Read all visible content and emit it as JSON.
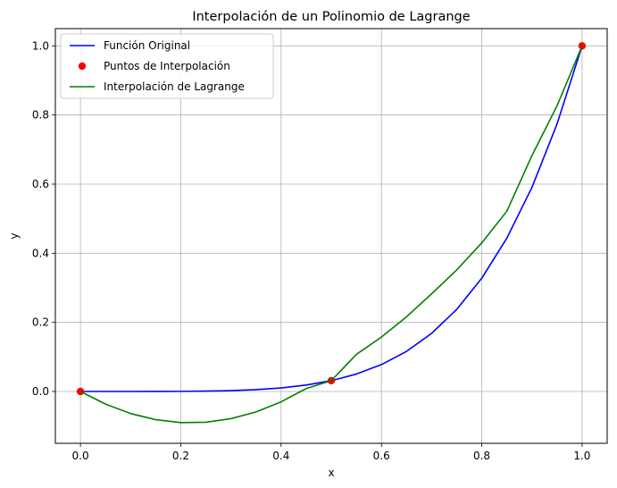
{
  "chart_data": {
    "type": "line",
    "title": "Interpolación de un Polinomio de Lagrange",
    "xlabel": "x",
    "ylabel": "y",
    "xlim": [
      -0.05,
      1.05
    ],
    "ylim": [
      -0.15,
      1.05
    ],
    "xticks": [
      0.0,
      0.2,
      0.4,
      0.6,
      0.8,
      1.0
    ],
    "yticks": [
      0.0,
      0.2,
      0.4,
      0.6,
      0.8,
      1.0
    ],
    "xtick_labels": [
      "0.0",
      "0.2",
      "0.4",
      "0.6",
      "0.8",
      "1.0"
    ],
    "ytick_labels": [
      "0.0",
      "0.2",
      "0.4",
      "0.6",
      "0.8",
      "1.0"
    ],
    "grid": true,
    "legend_placement": "upper-left",
    "series": [
      {
        "name": "Función Original",
        "kind": "line",
        "color": "#0000ff",
        "x": [
          0,
          0.05,
          0.1,
          0.15,
          0.2,
          0.25,
          0.3,
          0.35,
          0.4,
          0.45,
          0.5,
          0.55,
          0.6,
          0.65,
          0.7,
          0.75,
          0.8,
          0.85,
          0.9,
          0.95,
          1.0
        ],
        "y": [
          0,
          0,
          0,
          0.0001,
          0.0003,
          0.001,
          0.0024,
          0.0053,
          0.0102,
          0.0185,
          0.0313,
          0.0503,
          0.0778,
          0.116,
          0.1681,
          0.2373,
          0.3277,
          0.4437,
          0.5905,
          0.7738,
          1.0
        ]
      },
      {
        "name": "Puntos de Interpolación",
        "kind": "scatter",
        "color": "#ff0000",
        "x": [
          0.0,
          0.5,
          1.0
        ],
        "y": [
          0.0,
          0.03125,
          1.0
        ]
      },
      {
        "name": "Interpolación de Lagrange",
        "kind": "line",
        "color": "#008000",
        "x": [
          0,
          0.05,
          0.1,
          0.15,
          0.2,
          0.25,
          0.3,
          0.35,
          0.4,
          0.45,
          0.5,
          0.55,
          0.6,
          0.65,
          0.7,
          0.75,
          0.8,
          0.85,
          0.9,
          0.95,
          1.0
        ],
        "y": [
          0,
          -0.0366,
          -0.0638,
          -0.0816,
          -0.09,
          -0.0891,
          -0.0787,
          -0.0591,
          -0.03,
          0.0084,
          0.0313,
          0.1071,
          0.1575,
          0.2161,
          0.2825,
          0.3516,
          0.43,
          0.5216,
          0.6825,
          0.8266,
          1.0
        ]
      }
    ]
  }
}
